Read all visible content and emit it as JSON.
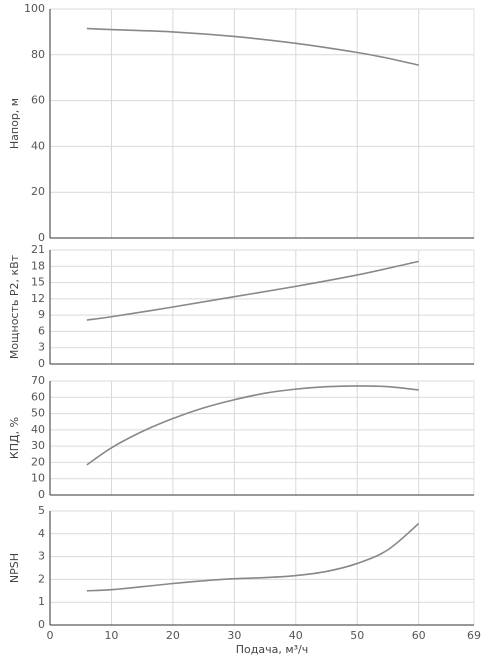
{
  "chart_data": [
    {
      "type": "line",
      "ylabel": "Напор, м",
      "xlim": [
        0,
        69
      ],
      "ylim": [
        0,
        100
      ],
      "yticks": [
        0,
        20,
        40,
        60,
        80,
        100
      ],
      "grid": true,
      "series": [
        {
          "x": [
            6,
            10,
            20,
            30,
            40,
            50,
            55,
            60
          ],
          "y": [
            91.5,
            91,
            90,
            88,
            85,
            81,
            78.5,
            75.5
          ]
        }
      ]
    },
    {
      "type": "line",
      "ylabel": "Мощность P2, кВт",
      "xlim": [
        0,
        69
      ],
      "ylim": [
        0,
        21
      ],
      "yticks": [
        0,
        3,
        6,
        9,
        12,
        15,
        18,
        21
      ],
      "grid": true,
      "series": [
        {
          "x": [
            6,
            10,
            20,
            30,
            40,
            50,
            60
          ],
          "y": [
            8.1,
            8.7,
            10.5,
            12.4,
            14.3,
            16.4,
            18.9
          ]
        }
      ]
    },
    {
      "type": "line",
      "ylabel": "КПД, %",
      "xlim": [
        0,
        69
      ],
      "ylim": [
        0,
        70
      ],
      "yticks": [
        0,
        10,
        20,
        30,
        40,
        50,
        60,
        70
      ],
      "grid": true,
      "series": [
        {
          "x": [
            6,
            10,
            15,
            20,
            25,
            30,
            35,
            40,
            45,
            50,
            55,
            60
          ],
          "y": [
            18.5,
            29,
            39,
            47,
            53.5,
            58.5,
            62.5,
            65,
            66.5,
            67,
            66.5,
            64.5
          ]
        }
      ]
    },
    {
      "type": "line",
      "ylabel": "NPSH",
      "xlabel": "Подача, м³/ч",
      "xlim": [
        0,
        69
      ],
      "ylim": [
        0,
        5
      ],
      "yticks": [
        0,
        1,
        2,
        3,
        4,
        5
      ],
      "xticks": [
        0,
        10,
        20,
        30,
        40,
        50,
        60,
        69
      ],
      "grid": true,
      "series": [
        {
          "x": [
            6,
            10,
            15,
            20,
            25,
            30,
            35,
            40,
            45,
            50,
            55,
            60
          ],
          "y": [
            1.5,
            1.55,
            1.68,
            1.82,
            1.94,
            2.03,
            2.08,
            2.17,
            2.35,
            2.7,
            3.3,
            4.45
          ]
        }
      ]
    }
  ]
}
